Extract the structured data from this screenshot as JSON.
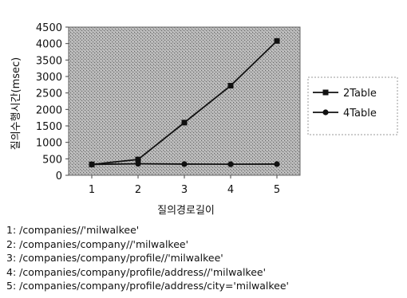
{
  "chart_data": {
    "type": "line",
    "title": "",
    "xlabel": "질의경로길이",
    "ylabel": "질의수행시간(msec)",
    "categories": [
      "1",
      "2",
      "3",
      "4",
      "5"
    ],
    "ylim": [
      0,
      4500
    ],
    "yticks": [
      "0",
      "500",
      "1000",
      "1500",
      "2000",
      "2500",
      "3000",
      "3500",
      "4000",
      "4500"
    ],
    "grid": false,
    "legend_position": "right",
    "series": [
      {
        "name": "2Table",
        "marker": "square",
        "values": [
          330,
          480,
          1600,
          2720,
          4080
        ]
      },
      {
        "name": "4Table",
        "marker": "circle",
        "values": [
          330,
          350,
          340,
          335,
          340
        ]
      }
    ]
  },
  "notes": [
    {
      "num": "1:",
      "path": "/companies//'milwalkee'"
    },
    {
      "num": "2:",
      "path": "/companies/company//'milwalkee'"
    },
    {
      "num": "3:",
      "path": "/companies/company/profile//'milwalkee'"
    },
    {
      "num": "4:",
      "path": "/companies/company/profile/address//'milwalkee'"
    },
    {
      "num": "5:",
      "path": "/companies/company/profile/address/city='milwalkee'"
    }
  ]
}
